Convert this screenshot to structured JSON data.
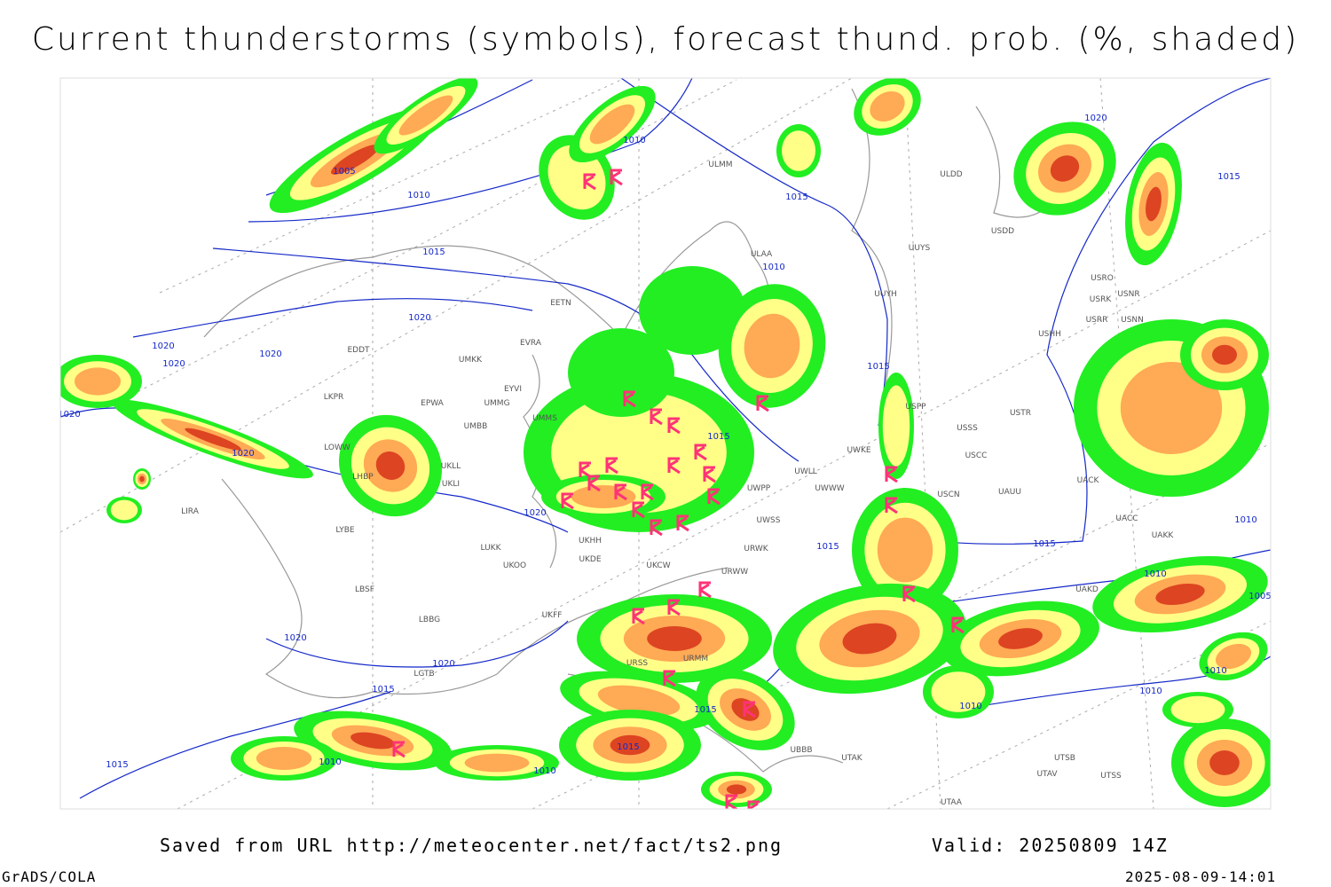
{
  "header": {
    "title": "Current thunderstorms (symbols), forecast thund. prob. (%, shaded)"
  },
  "map": {
    "isobar_labels": [
      "1005",
      "1010",
      "1010",
      "1015",
      "1015",
      "1010",
      "1020",
      "1020",
      "1020",
      "1020",
      "1020",
      "1020",
      "1015",
      "1020",
      "1015",
      "1015",
      "1015",
      "1010",
      "1010",
      "1020",
      "1015",
      "1020",
      "1020",
      "1015",
      "1010",
      "1015",
      "1015",
      "1015",
      "1010",
      "1010",
      "1010",
      "1010",
      "1005"
    ],
    "station_labels": [
      "ULMM",
      "ULDD",
      "ULAA",
      "UUYS",
      "UUYH",
      "EETN",
      "EVRA",
      "UMKK",
      "EDDT",
      "EPWA",
      "UMMG",
      "EYVI",
      "UMMS",
      "UMBB",
      "LKPR",
      "LOWW",
      "LHBP",
      "UKLL",
      "UKLI",
      "LYBE",
      "LBSF",
      "LUKK",
      "UKOO",
      "UKDE",
      "UKHH",
      "UKCW",
      "URWW",
      "UWSS",
      "URWK",
      "UWPP",
      "UWWW",
      "UWLL",
      "UWKE",
      "USSS",
      "USTR",
      "USCC",
      "USCN",
      "UAUU",
      "UACK",
      "UACC",
      "UAKK",
      "UAKD",
      "USPP",
      "USHH",
      "USRO",
      "USRK",
      "USNR",
      "USRR",
      "USNN",
      "USDD",
      "UKFF",
      "LBBG",
      "LGTB",
      "UTAK",
      "UTSB",
      "UTAV",
      "UTSS",
      "UTAA",
      "UBBB",
      "URMM",
      "URSS",
      "LIRA"
    ]
  },
  "footer": {
    "source": "Saved from URL http://meteocenter.net/fact/ts2.png",
    "valid": "Valid: 20250809 14Z",
    "software": "GrADS/COLA",
    "timestamp": "2025-08-09-14:01"
  }
}
